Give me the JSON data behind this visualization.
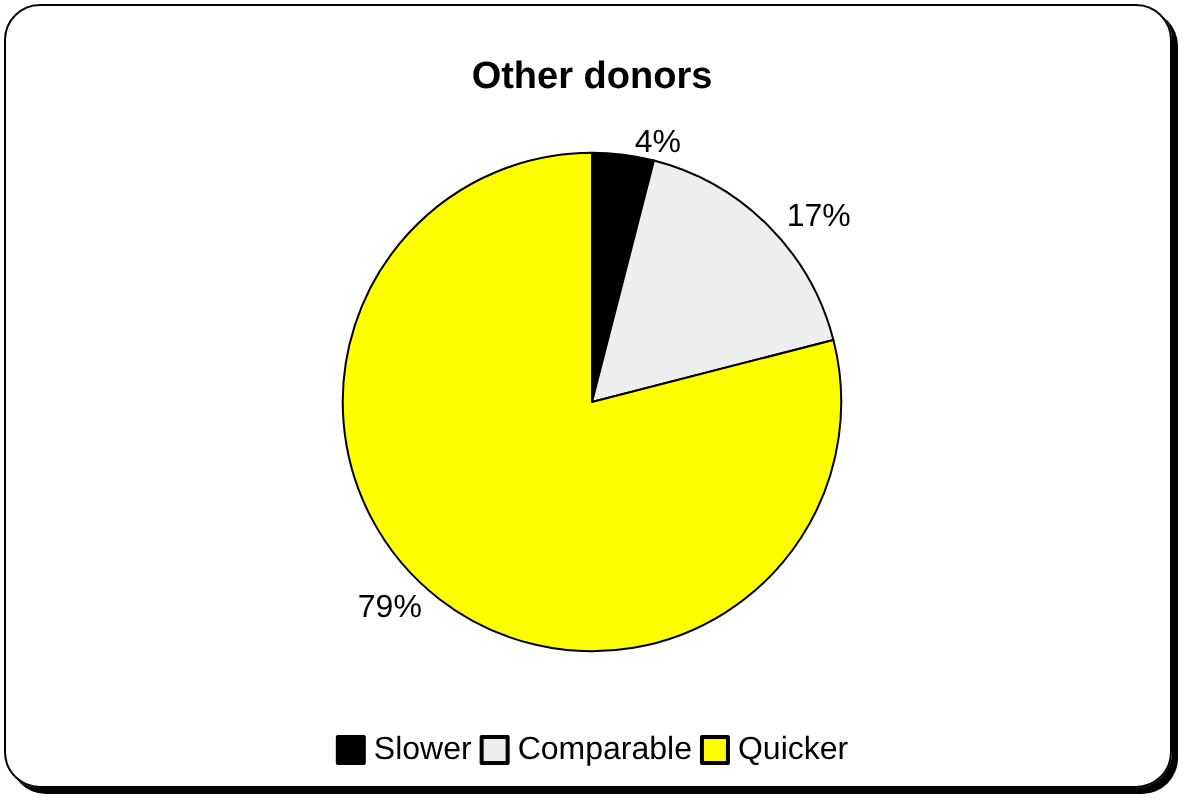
{
  "chart_data": {
    "type": "pie",
    "title": "Other donors",
    "categories": [
      "Slower",
      "Comparable",
      "Quicker"
    ],
    "values": [
      4,
      17,
      79
    ],
    "colors": [
      "#000000",
      "#eeeeee",
      "#ffff00"
    ],
    "value_labels": [
      "4%",
      "17%",
      "79%"
    ],
    "legend": "bottom"
  }
}
